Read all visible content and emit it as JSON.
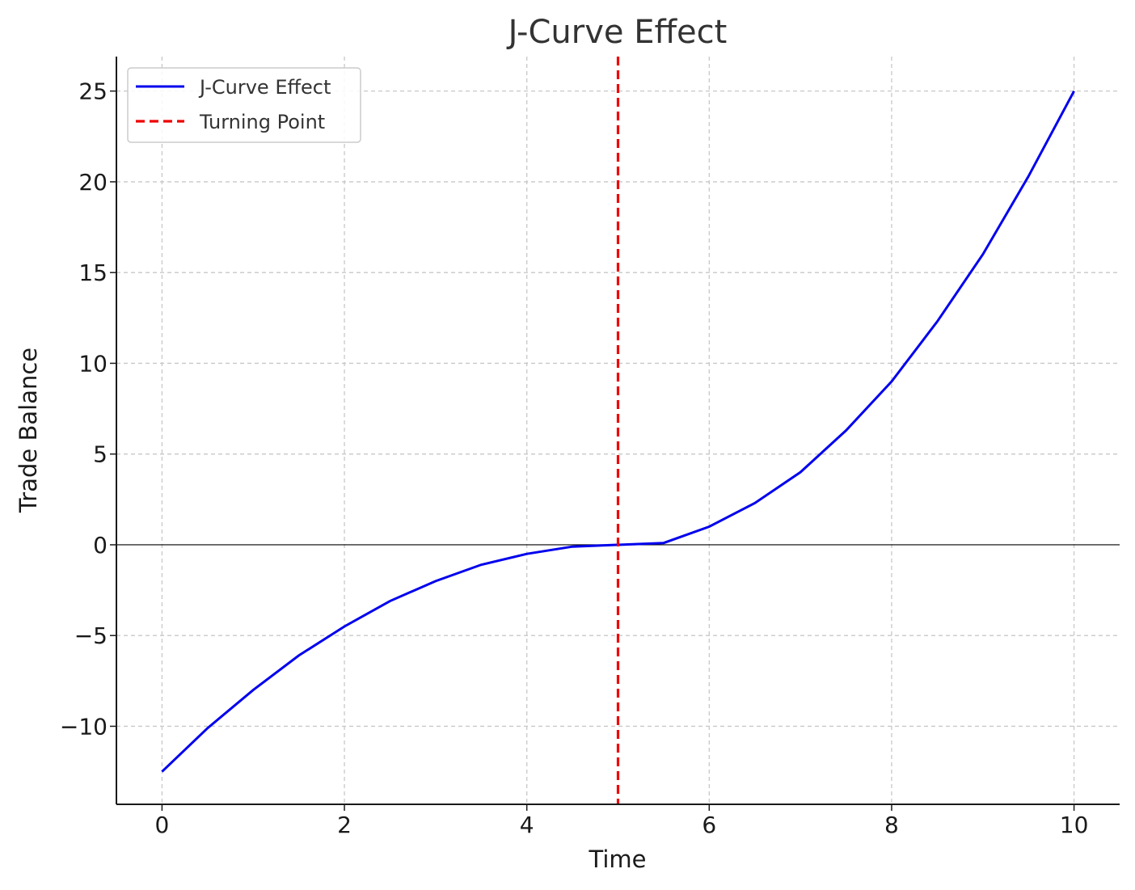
{
  "chart_data": {
    "type": "line",
    "title": "J-Curve Effect",
    "xlabel": "Time",
    "ylabel": "Trade Balance",
    "xlim": [
      -0.5,
      10.5
    ],
    "ylim": [
      -14.3,
      26.9
    ],
    "xticks": [
      0,
      2,
      4,
      6,
      8,
      10
    ],
    "xtick_labels": [
      "0",
      "2",
      "4",
      "6",
      "8",
      "10"
    ],
    "yticks": [
      -10,
      -5,
      0,
      5,
      10,
      15,
      20,
      25
    ],
    "ytick_labels": [
      "−10",
      "−5",
      "0",
      "5",
      "10",
      "15",
      "20",
      "25"
    ],
    "grid": true,
    "legend_position": "upper-left",
    "series": [
      {
        "name": "J-Curve Effect",
        "color": "#0000ee",
        "style": "solid",
        "x": [
          0,
          0.5,
          1,
          1.5,
          2,
          2.5,
          3,
          3.5,
          4,
          4.5,
          5,
          5.5,
          6,
          6.5,
          7,
          7.5,
          8,
          8.5,
          9,
          9.5,
          10
        ],
        "y": [
          -12.5,
          -10.1,
          -8.0,
          -6.1,
          -4.5,
          -3.1,
          -2.0,
          -1.1,
          -0.5,
          -0.1,
          0.0,
          0.1,
          1.0,
          2.3,
          4.0,
          6.3,
          9.0,
          12.3,
          16.0,
          20.3,
          25.0
        ]
      },
      {
        "name": "Turning Point",
        "color": "#ee0000",
        "style": "dashed",
        "vline_x": 5
      }
    ],
    "hline_y": 0
  }
}
